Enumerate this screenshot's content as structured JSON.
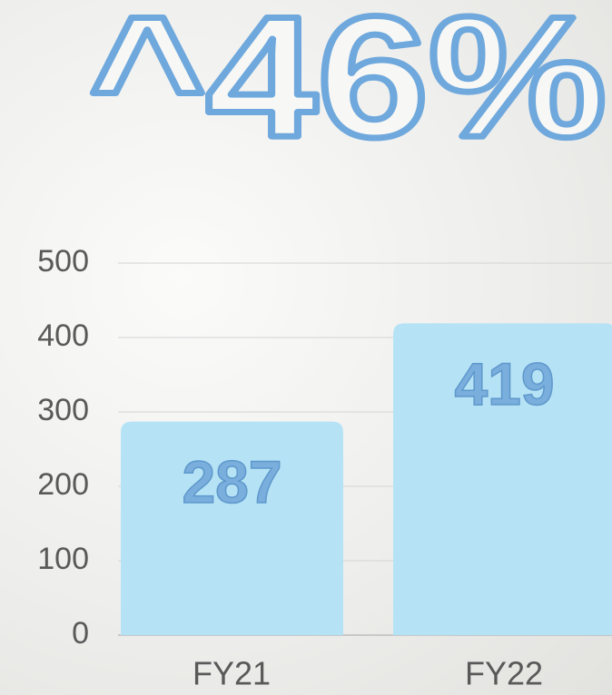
{
  "chart_data": {
    "type": "bar",
    "title": "^46%",
    "categories": [
      "FY21",
      "FY22"
    ],
    "values": [
      287,
      419
    ],
    "color": "#b5e3f5",
    "ylim": [
      0,
      500
    ],
    "yticks": [
      0,
      100,
      200,
      300,
      400,
      500
    ],
    "grid": true
  }
}
